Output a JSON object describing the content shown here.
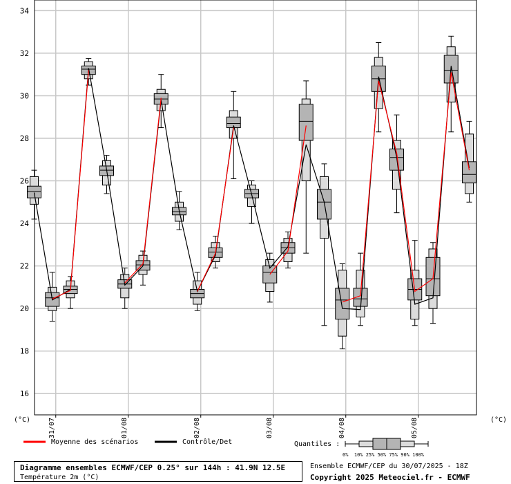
{
  "chart_data": {
    "type": "boxplot",
    "title": "",
    "ylim": [
      15,
      34.5
    ],
    "y_ticks": [
      16,
      18,
      20,
      22,
      24,
      26,
      28,
      30,
      32,
      34
    ],
    "unit_left": "(°C)",
    "unit_right": "(°C)",
    "date_labels": [
      "31/07",
      "01/08",
      "02/08",
      "03/08",
      "04/08",
      "05/08"
    ],
    "boxes": [
      {
        "q0": 24.2,
        "q10": 24.9,
        "q25": 25.2,
        "q50": 25.5,
        "q75": 25.75,
        "q90": 26.2,
        "q100": 26.5
      },
      {
        "q0": 19.4,
        "q10": 19.9,
        "q25": 20.1,
        "q50": 20.5,
        "q75": 20.75,
        "q90": 21.0,
        "q100": 21.7
      },
      {
        "q0": 20.0,
        "q10": 20.5,
        "q25": 20.7,
        "q50": 20.9,
        "q75": 21.05,
        "q90": 21.3,
        "q100": 21.5
      },
      {
        "q0": 30.5,
        "q10": 30.8,
        "q25": 31.0,
        "q50": 31.25,
        "q75": 31.4,
        "q90": 31.6,
        "q100": 31.75
      },
      {
        "q0": 25.4,
        "q10": 25.8,
        "q25": 26.25,
        "q50": 26.5,
        "q75": 26.7,
        "q90": 26.95,
        "q100": 27.2
      },
      {
        "q0": 20.0,
        "q10": 20.5,
        "q25": 20.95,
        "q50": 21.15,
        "q75": 21.35,
        "q90": 21.6,
        "q100": 21.9
      },
      {
        "q0": 21.1,
        "q10": 21.6,
        "q25": 21.8,
        "q50": 22.05,
        "q75": 22.25,
        "q90": 22.5,
        "q100": 22.7
      },
      {
        "q0": 28.5,
        "q10": 29.3,
        "q25": 29.6,
        "q50": 29.85,
        "q75": 30.1,
        "q90": 30.3,
        "q100": 31.0
      },
      {
        "q0": 23.7,
        "q10": 24.1,
        "q25": 24.4,
        "q50": 24.55,
        "q75": 24.75,
        "q90": 25.0,
        "q100": 25.5
      },
      {
        "q0": 19.9,
        "q10": 20.2,
        "q25": 20.5,
        "q50": 20.7,
        "q75": 20.9,
        "q90": 21.3,
        "q100": 21.7
      },
      {
        "q0": 21.9,
        "q10": 22.2,
        "q25": 22.4,
        "q50": 22.65,
        "q75": 22.85,
        "q90": 23.1,
        "q100": 23.4
      },
      {
        "q0": 26.1,
        "q10": 28.0,
        "q25": 28.5,
        "q50": 28.7,
        "q75": 29.0,
        "q90": 29.3,
        "q100": 30.2
      },
      {
        "q0": 24.0,
        "q10": 24.8,
        "q25": 25.2,
        "q50": 25.4,
        "q75": 25.6,
        "q90": 25.8,
        "q100": 26.0
      },
      {
        "q0": 20.3,
        "q10": 20.8,
        "q25": 21.2,
        "q50": 21.7,
        "q75": 22.0,
        "q90": 22.3,
        "q100": 22.6
      },
      {
        "q0": 21.9,
        "q10": 22.2,
        "q25": 22.6,
        "q50": 22.85,
        "q75": 23.1,
        "q90": 23.3,
        "q100": 23.6
      },
      {
        "q0": 22.6,
        "q10": 26.0,
        "q25": 27.9,
        "q50": 28.8,
        "q75": 29.6,
        "q90": 29.85,
        "q100": 30.7
      },
      {
        "q0": 19.2,
        "q10": 23.3,
        "q25": 24.2,
        "q50": 25.0,
        "q75": 25.6,
        "q90": 26.2,
        "q100": 26.8
      },
      {
        "q0": 18.1,
        "q10": 18.7,
        "q25": 19.5,
        "q50": 20.4,
        "q75": 20.95,
        "q90": 21.8,
        "q100": 22.1
      },
      {
        "q0": 19.2,
        "q10": 19.6,
        "q25": 20.1,
        "q50": 20.45,
        "q75": 20.95,
        "q90": 21.8,
        "q100": 22.6
      },
      {
        "q0": 28.3,
        "q10": 29.4,
        "q25": 30.2,
        "q50": 30.8,
        "q75": 31.4,
        "q90": 31.8,
        "q100": 32.5
      },
      {
        "q0": 24.5,
        "q10": 25.6,
        "q25": 26.5,
        "q50": 27.1,
        "q75": 27.5,
        "q90": 27.9,
        "q100": 29.1
      },
      {
        "q0": 19.2,
        "q10": 19.5,
        "q25": 20.4,
        "q50": 20.9,
        "q75": 21.4,
        "q90": 21.8,
        "q100": 23.2
      },
      {
        "q0": 19.3,
        "q10": 20.0,
        "q25": 20.6,
        "q50": 21.4,
        "q75": 22.4,
        "q90": 22.8,
        "q100": 23.1
      },
      {
        "q0": 28.3,
        "q10": 29.7,
        "q25": 30.6,
        "q50": 31.2,
        "q75": 31.9,
        "q90": 32.3,
        "q100": 32.8
      },
      {
        "q0": 25.0,
        "q10": 25.4,
        "q25": 25.9,
        "q50": 26.3,
        "q75": 26.9,
        "q90": 28.2,
        "q100": 28.8
      }
    ],
    "series": [
      {
        "name": "Moyenne des scénarios",
        "color": "#ff0000",
        "values": [
          null,
          20.45,
          20.85,
          31.2,
          null,
          21.2,
          22.1,
          29.9,
          null,
          20.8,
          22.6,
          28.5,
          null,
          21.6,
          22.7,
          28.6,
          null,
          20.3,
          20.6,
          30.7,
          27.3,
          20.8,
          21.4,
          31.1,
          26.5
        ]
      },
      {
        "name": "Contrôle/Det",
        "color": "#000000",
        "values": [
          25.45,
          20.4,
          20.9,
          31.3,
          26.5,
          21.1,
          22.0,
          29.8,
          24.6,
          20.8,
          22.5,
          28.6,
          25.35,
          21.9,
          22.9,
          27.7,
          25.0,
          20.0,
          19.95,
          30.9,
          27.1,
          20.2,
          20.5,
          31.4,
          26.6
        ]
      }
    ],
    "legend": {
      "mean_label": "Moyenne des scénarios",
      "det_label": "Contrôle/Det",
      "quantiles_label": "Quantiles :",
      "quantile_ticks": "0%  10% 25% 50% 75% 90% 100%"
    },
    "grid": true
  },
  "footer": {
    "title": "Diagramme ensembles ECMWF/CEP 0.25° sur 144h : 41.9N 12.5E",
    "subtitle": "Température 2m (°C)",
    "run": "Ensemble ECMWF/CEP du 30/07/2025 - 18Z",
    "copyright": "Copyright 2025 Meteociel.fr - ECMWF"
  }
}
